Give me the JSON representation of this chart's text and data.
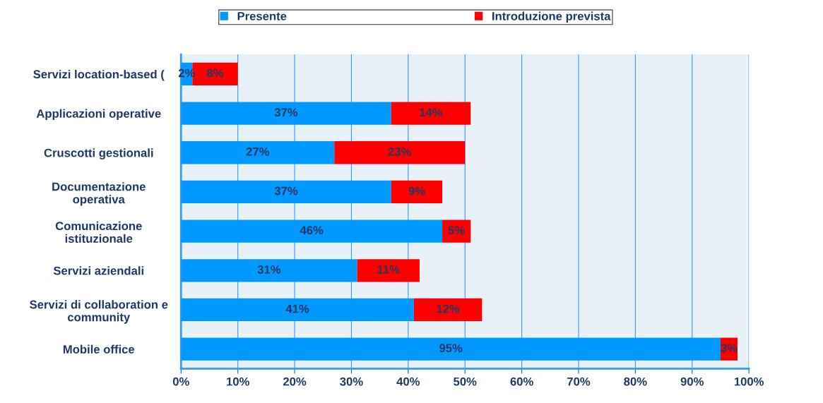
{
  "chart_data": {
    "type": "bar",
    "orientation": "horizontal",
    "stacked": true,
    "categories": [
      "Servizi location-based (",
      "Applicazioni operative",
      "Cruscotti gestionali",
      "Documentazione\noperativa",
      "Comunicazione\nistituzionale",
      "Servizi aziendali",
      "Servizi di collaboration e\ncommunity",
      "Mobile office"
    ],
    "series": [
      {
        "name": "Presente",
        "color": "#0099ff",
        "values": [
          2,
          37,
          27,
          37,
          46,
          31,
          41,
          95
        ],
        "value_labels": [
          "2%",
          "37%",
          "27%",
          "37%",
          "46%",
          "31%",
          "41%",
          "95%"
        ]
      },
      {
        "name": "Introduzione prevista",
        "color": "#ff0000",
        "values": [
          8,
          14,
          23,
          9,
          5,
          11,
          12,
          3
        ],
        "value_labels": [
          "8%",
          "14%",
          "23%",
          "9%",
          "5%",
          "11%",
          "12%",
          "3%"
        ]
      }
    ],
    "xlim": [
      0,
      100
    ],
    "xticks": [
      {
        "value": 0,
        "label": "0%"
      },
      {
        "value": 10,
        "label": "10%"
      },
      {
        "value": 20,
        "label": "20%"
      },
      {
        "value": 30,
        "label": "30%"
      },
      {
        "value": 40,
        "label": "40%"
      },
      {
        "value": 50,
        "label": "50%"
      },
      {
        "value": 60,
        "label": "60%"
      },
      {
        "value": 70,
        "label": "70%"
      },
      {
        "value": 80,
        "label": "80%"
      },
      {
        "value": 90,
        "label": "90%"
      },
      {
        "value": 100,
        "label": "100%"
      }
    ],
    "grid": "x",
    "legend": "top"
  }
}
